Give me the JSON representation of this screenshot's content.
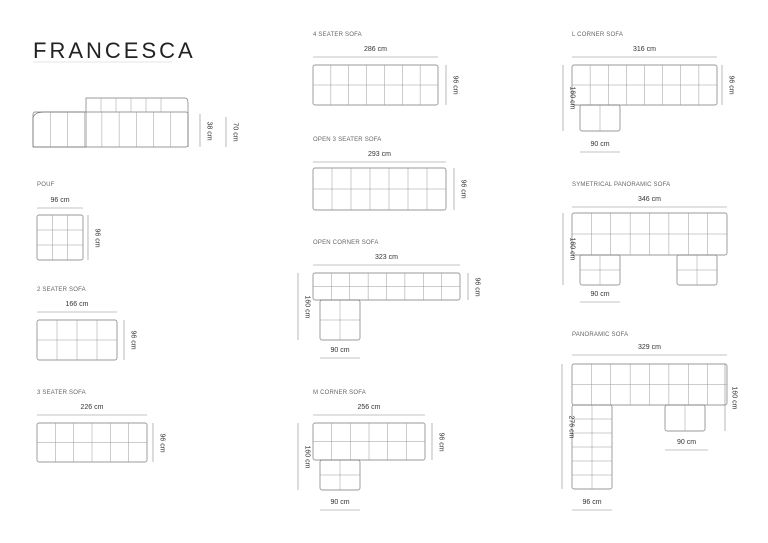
{
  "title": "FRANCESCA",
  "side_view": {
    "seat_height": "38 cm",
    "total_height": "70 cm"
  },
  "products": {
    "pouf": {
      "label": "POUF",
      "width": "96 cm",
      "depth": "96 cm"
    },
    "two_seater": {
      "label": "2 SEATER SOFA",
      "width": "166 cm",
      "depth": "96 cm"
    },
    "three_seater": {
      "label": "3 SEATER SOFA",
      "width": "226 cm",
      "depth": "96 cm"
    },
    "four_seater": {
      "label": "4 SEATER SOFA",
      "width": "286 cm",
      "depth": "96 cm"
    },
    "open_three_seater": {
      "label": "OPEN 3 SEATER SOFA",
      "width": "293 cm",
      "depth": "96 cm"
    },
    "open_corner": {
      "label": "OPEN CORNER SOFA",
      "width": "323 cm",
      "depth": "96 cm",
      "total_depth": "160 cm",
      "chaise_width": "90 cm"
    },
    "m_corner": {
      "label": "M CORNER SOFA",
      "width": "256 cm",
      "depth": "96 cm",
      "total_depth": "160 cm",
      "chaise_width": "90 cm"
    },
    "l_corner": {
      "label": "L CORNER SOFA",
      "width": "316 cm",
      "depth": "96 cm",
      "total_depth": "160 cm",
      "chaise_width": "90 cm"
    },
    "symmetrical_panoramic": {
      "label": "SYMETRICAL PANORAMIC SOFA",
      "width": "346 cm",
      "total_depth": "160 cm",
      "chaise_width": "90 cm"
    },
    "panoramic": {
      "label": "PANORAMIC SOFA",
      "width": "329 cm",
      "total_depth": "276 cm",
      "right_depth": "160 cm",
      "chaise_width": "90 cm",
      "side_width": "96 cm"
    }
  }
}
